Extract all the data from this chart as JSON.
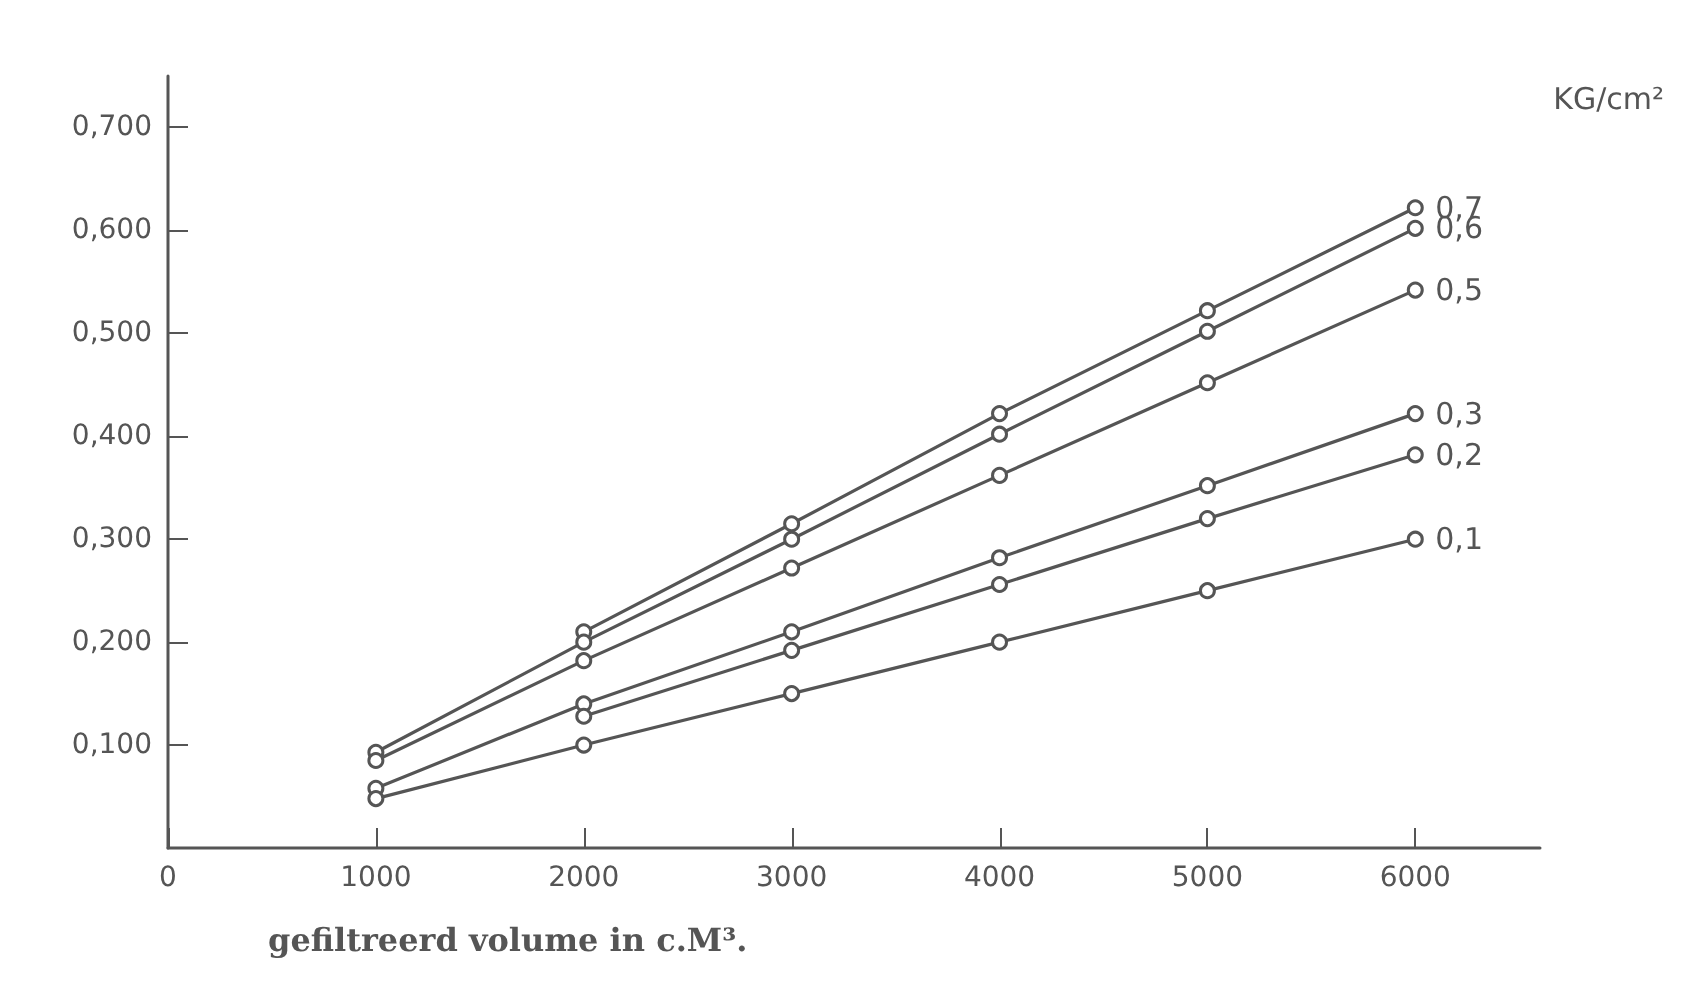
{
  "chart_data": {
    "type": "line",
    "xlabel": "gefiltreerd volume in c.M³.",
    "x": [
      1000,
      2000,
      3000,
      4000,
      5000,
      6000
    ],
    "series": [
      {
        "name": "0,7",
        "color": "#555555",
        "values": [
          null,
          0.21,
          0.315,
          0.422,
          0.522,
          0.622
        ]
      },
      {
        "name": "0,6",
        "color": "#555555",
        "values": [
          0.093,
          0.2,
          0.3,
          0.402,
          0.502,
          0.602
        ]
      },
      {
        "name": "0,5",
        "color": "#555555",
        "values": [
          0.085,
          0.182,
          0.272,
          0.362,
          0.452,
          0.542
        ]
      },
      {
        "name": "0,3",
        "color": "#555555",
        "values": [
          0.058,
          0.14,
          0.21,
          0.282,
          0.352,
          0.422
        ]
      },
      {
        "name": "0,2",
        "color": "#555555",
        "values": [
          null,
          0.128,
          0.192,
          0.256,
          0.32,
          0.382
        ]
      },
      {
        "name": "0,1",
        "color": "#555555",
        "values": [
          0.048,
          0.1,
          0.15,
          0.2,
          0.25,
          0.3
        ]
      }
    ],
    "annotations": [
      "KG/cm²"
    ],
    "xlim": [
      0,
      6600
    ],
    "xticks": [
      0,
      1000,
      2000,
      3000,
      4000,
      5000,
      6000
    ],
    "ylim": [
      0,
      0.75
    ],
    "yticks": [
      {
        "value": 0.1,
        "label": "0,100"
      },
      {
        "value": 0.2,
        "label": "0,200"
      },
      {
        "value": 0.3,
        "label": "0,300"
      },
      {
        "value": 0.4,
        "label": "0,400"
      },
      {
        "value": 0.5,
        "label": "0,500"
      },
      {
        "value": 0.6,
        "label": "0,600"
      },
      {
        "value": 0.7,
        "label": "0,700"
      }
    ],
    "grid": false,
    "legend": false,
    "marker": "circle",
    "line_style": "solid"
  }
}
